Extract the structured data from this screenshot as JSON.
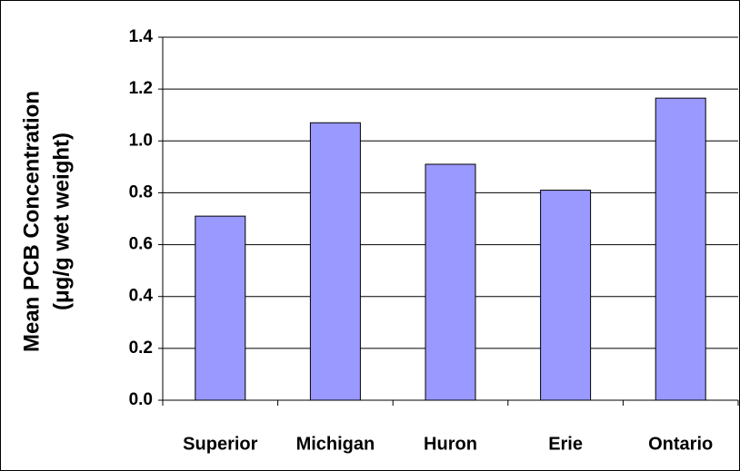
{
  "chart_data": {
    "type": "bar",
    "y_label": [
      "Mean PCB Concentration",
      "(μg/g wet weight)"
    ],
    "categories": [
      "Superior",
      "Michigan",
      "Huron",
      "Erie",
      "Ontario"
    ],
    "values": [
      0.71,
      1.07,
      0.91,
      0.81,
      1.165
    ],
    "color": "#9999ff",
    "ylim": [
      0,
      1.4
    ],
    "yticks": [
      {
        "value": 0,
        "label": "0.0"
      },
      0.2,
      0.4,
      0.6,
      0.8,
      {
        "value": 1,
        "label": "1.0"
      },
      1.2,
      1.4
    ],
    "grid": true
  }
}
